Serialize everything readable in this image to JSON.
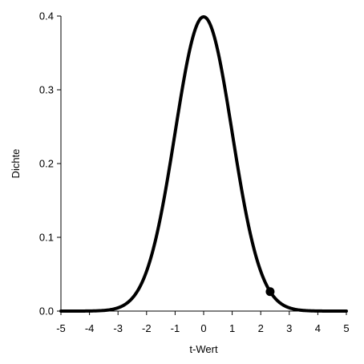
{
  "chart_data": {
    "type": "line",
    "xlabel": "t-Wert",
    "ylabel": "Dichte",
    "xlim": [
      -5,
      5
    ],
    "ylim": [
      0,
      0.4
    ],
    "x_ticks": [
      -5,
      -4,
      -3,
      -2,
      -1,
      0,
      1,
      2,
      3,
      4,
      5
    ],
    "x_tick_labels": [
      "-5",
      "-4",
      "-3",
      "-2",
      "-1",
      "0",
      "1",
      "2",
      "3",
      "4",
      "5"
    ],
    "y_ticks": [
      0,
      0.1,
      0.2,
      0.3,
      0.4
    ],
    "y_tick_labels": [
      "0.0",
      "0.1",
      "0.2",
      "0.3",
      "0.4"
    ],
    "grid": false,
    "series": [
      {
        "x": [
          -5,
          -4.5,
          -4,
          -3.5,
          -3,
          -2.5,
          -2,
          -1.5,
          -1,
          -0.5,
          0,
          0.5,
          1,
          1.5,
          2,
          2.5,
          3,
          3.5,
          4,
          4.5,
          5
        ],
        "values": [
          1.5e-06,
          1.6e-05,
          0.000134,
          0.00087,
          0.0044,
          0.0175,
          0.054,
          0.1295,
          0.242,
          0.352,
          0.3989,
          0.352,
          0.242,
          0.1295,
          0.054,
          0.0175,
          0.0044,
          0.00087,
          0.000134,
          1.6e-05,
          1.5e-06
        ],
        "color": "#000000"
      }
    ],
    "highlight_point": {
      "x": 2.33,
      "y": 0.0264,
      "color": "#000000"
    }
  }
}
